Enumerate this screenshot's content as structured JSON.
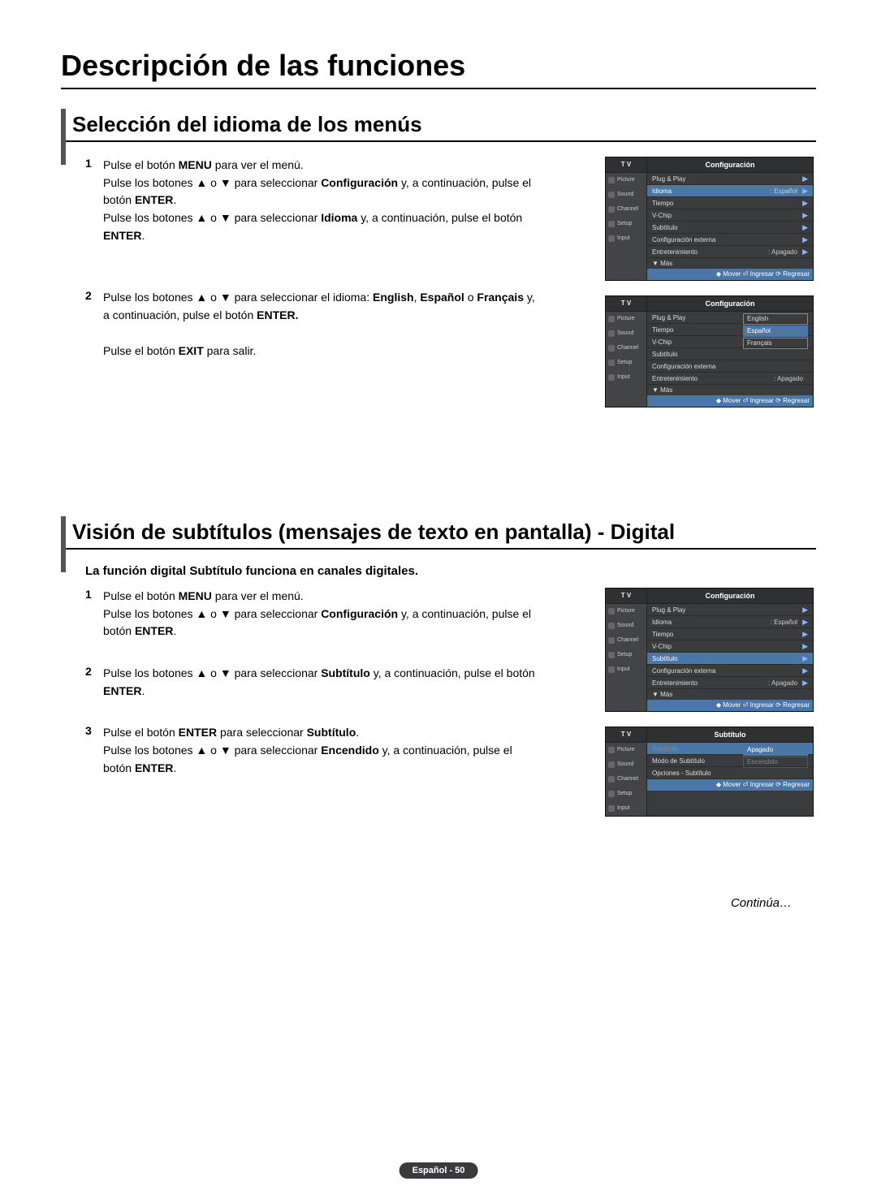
{
  "page": {
    "main_title": "Descripción de las funciones",
    "continua": "Continúa…",
    "page_number": "Español - 50"
  },
  "section1": {
    "title": "Selección del idioma de los menús",
    "steps": [
      {
        "num": "1",
        "html": "Pulse el botón <b>MENU</b> para ver el menú.<br>Pulse los botones ▲ o ▼ para seleccionar <b>Configuración</b> y, a continuación, pulse el botón <b>ENTER</b>.<br>Pulse los botones ▲ o ▼ para seleccionar <b>Idioma</b> y, a continuación, pulse el botón <b>ENTER</b>."
      },
      {
        "num": "2",
        "html": "Pulse los botones ▲ o ▼ para seleccionar el idioma: <b>English</b>, <b>Español</b> o <b>Français</b> y, a continuación, pulse el botón <b>ENTER.</b><br><br>Pulse el botón <b>EXIT</b> para salir."
      }
    ]
  },
  "section2": {
    "title": "Visión de subtítulos (mensajes de texto en pantalla) - Digital",
    "intro": "La función digital Subtítulo funciona en canales digitales.",
    "steps": [
      {
        "num": "1",
        "html": "Pulse el botón <b>MENU</b> para ver el menú.<br>Pulse los botones ▲ o ▼ para seleccionar <b>Configuración</b> y, a continuación, pulse el botón <b>ENTER</b>."
      },
      {
        "num": "2",
        "html": "Pulse los botones ▲ o ▼ para seleccionar <b>Subtítulo</b> y, a continuación, pulse el botón <b>ENTER</b>."
      },
      {
        "num": "3",
        "html": "Pulse el botón <b>ENTER</b> para seleccionar <b>Subtítulo</b>.<br>Pulse los botones ▲ o ▼ para seleccionar <b>Encendido</b> y, a continuación, pulse el botón <b>ENTER</b>."
      }
    ]
  },
  "osd": {
    "tv_label": "T V",
    "side_items": [
      "Picture",
      "Sound",
      "Channel",
      "Setup",
      "Input"
    ],
    "config_title": "Configuración",
    "subtitulo_title": "Subtítulo",
    "footer": "◆ Mover  ⏎ Ingresar  ⟳ Regresar",
    "mas": "▼ Más",
    "menu1_items": [
      {
        "lbl": "Plug & Play",
        "val": "",
        "arrow": "▶",
        "hl": false
      },
      {
        "lbl": "Idioma",
        "val": ": Español",
        "arrow": "▶",
        "hl": true
      },
      {
        "lbl": "Tiempo",
        "val": "",
        "arrow": "▶",
        "hl": false
      },
      {
        "lbl": "V-Chip",
        "val": "",
        "arrow": "▶",
        "hl": false
      },
      {
        "lbl": "Subtítulo",
        "val": "",
        "arrow": "▶",
        "hl": false
      },
      {
        "lbl": "Configuración externa",
        "val": "",
        "arrow": "▶",
        "hl": false
      },
      {
        "lbl": "Entretenimiento",
        "val": ": Apagado",
        "arrow": "▶",
        "hl": false
      }
    ],
    "menu2_items": [
      {
        "lbl": "Plug & Play",
        "val": "",
        "arrow": "",
        "hl": false
      },
      {
        "lbl": "Tiempo",
        "val": "",
        "arrow": "",
        "hl": false
      },
      {
        "lbl": "V-Chip",
        "val": "",
        "arrow": "",
        "hl": false
      },
      {
        "lbl": "Subtítulo",
        "val": "",
        "arrow": "",
        "hl": false
      },
      {
        "lbl": "Configuración externa",
        "val": "",
        "arrow": "",
        "hl": false
      },
      {
        "lbl": "Entretenimiento",
        "val": ": Apagado",
        "arrow": "",
        "hl": false
      }
    ],
    "menu2_options": [
      {
        "lbl": "English",
        "sel": false
      },
      {
        "lbl": "Español",
        "sel": true
      },
      {
        "lbl": "Français",
        "sel": false
      }
    ],
    "menu3_items": [
      {
        "lbl": "Plug & Play",
        "val": "",
        "arrow": "▶",
        "hl": false
      },
      {
        "lbl": "Idioma",
        "val": ": Español",
        "arrow": "▶",
        "hl": false
      },
      {
        "lbl": "Tiempo",
        "val": "",
        "arrow": "▶",
        "hl": false
      },
      {
        "lbl": "V-Chip",
        "val": "",
        "arrow": "▶",
        "hl": false
      },
      {
        "lbl": "Subtítulo",
        "val": "",
        "arrow": "▶",
        "hl": true
      },
      {
        "lbl": "Configuración externa",
        "val": "",
        "arrow": "▶",
        "hl": false
      },
      {
        "lbl": "Entretenimiento",
        "val": ": Apagado",
        "arrow": "▶",
        "hl": false
      }
    ],
    "menu4_items": [
      {
        "lbl": "Subtítulo",
        "val": "",
        "arrow": "",
        "hl": true,
        "dim": true
      },
      {
        "lbl": "Modo de Subtítulo",
        "val": "",
        "arrow": "",
        "hl": false
      },
      {
        "lbl": "Opciones - Subtítulo",
        "val": "",
        "arrow": "",
        "hl": false
      }
    ],
    "menu4_options": [
      {
        "lbl": "Apagado",
        "sel": true
      },
      {
        "lbl": "Encendido",
        "sel": false,
        "dim": true
      }
    ]
  }
}
